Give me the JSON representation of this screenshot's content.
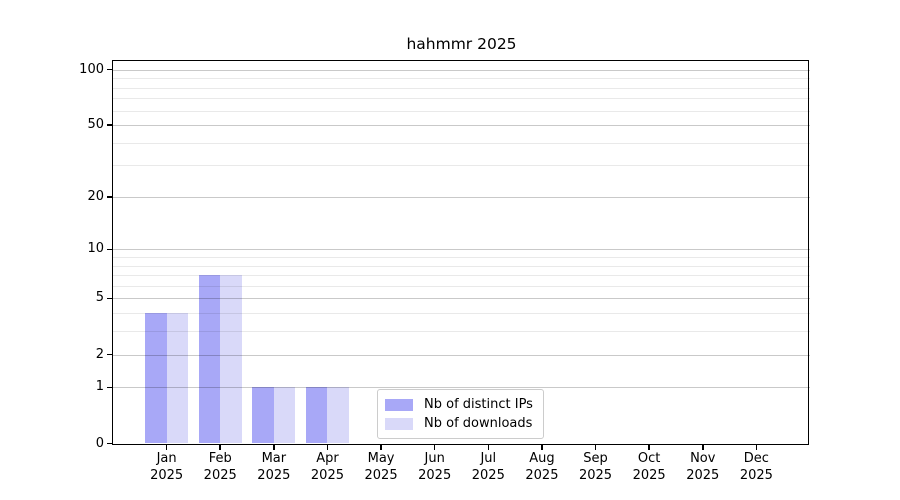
{
  "figure": {
    "title": "hahmmr 2025"
  },
  "chart_data": {
    "type": "bar",
    "title": "hahmmr 2025",
    "categories": [
      "Jan 2025",
      "Feb 2025",
      "Mar 2025",
      "Apr 2025",
      "May 2025",
      "Jun 2025",
      "Jul 2025",
      "Aug 2025",
      "Sep 2025",
      "Oct 2025",
      "Nov 2025",
      "Dec 2025"
    ],
    "series": [
      {
        "name": "Nb of distinct IPs",
        "color": "#a8a8f7",
        "values": [
          4,
          7,
          1,
          1,
          0,
          0,
          0,
          0,
          0,
          0,
          0,
          0
        ]
      },
      {
        "name": "Nb of downloads",
        "color": "#d9d9f9",
        "values": [
          4,
          7,
          1,
          1,
          0,
          0,
          0,
          0,
          0,
          0,
          0,
          0
        ]
      }
    ],
    "xlabel": "",
    "ylabel": "",
    "yscale": "log10(1+v)",
    "ylim": [
      0,
      112
    ],
    "major_yticks": [
      0,
      1,
      2,
      5,
      10,
      20,
      50,
      100
    ],
    "minor_yticks": [
      3,
      4,
      6,
      7,
      8,
      9,
      30,
      40,
      60,
      70,
      80,
      90
    ],
    "grid": "horizontal, major and minor, drawn over bars",
    "legend_position": "inside lower-center"
  },
  "legend": {
    "items": [
      {
        "label": "Nb of distinct IPs",
        "color": "#a8a8f7"
      },
      {
        "label": "Nb of downloads",
        "color": "#d9d9f9"
      }
    ]
  },
  "colors": {
    "background": "#ffffff",
    "axis": "#000000",
    "bar_distinct_ips": "#a8a8f7",
    "bar_downloads": "#d9d9f9",
    "legend_border": "#cccccc"
  }
}
